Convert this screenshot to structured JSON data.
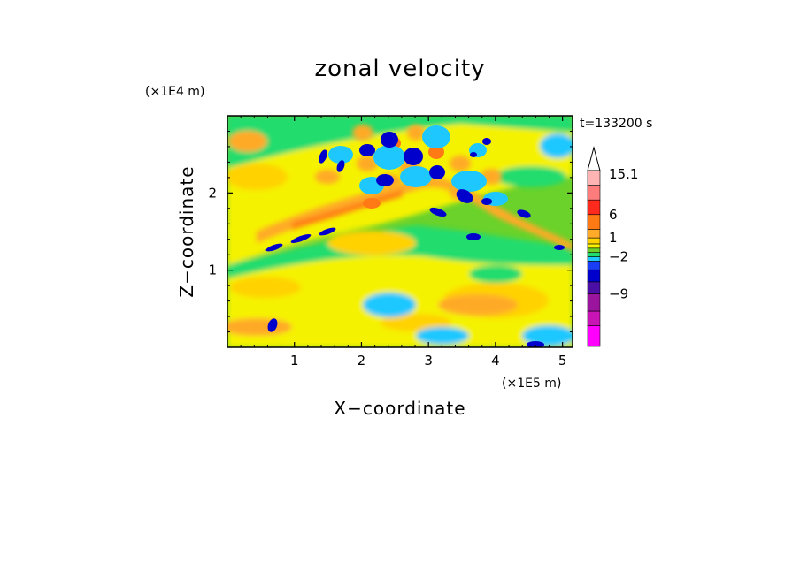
{
  "chart_data": {
    "type": "heatmap",
    "title": "zonal velocity",
    "xlabel": "X−coordinate",
    "ylabel": "Z−coordinate",
    "x_scale_label": "(×1E5 m)",
    "y_scale_label": "(×1E4 m)",
    "time_label": "t=133200 s",
    "xlim": [
      0,
      5.15
    ],
    "ylim": [
      0,
      3.0
    ],
    "x_ticks": [
      1,
      2,
      3,
      4,
      5
    ],
    "y_ticks": [
      1,
      2
    ],
    "colorbar": {
      "labeled_values": [
        {
          "value": 15.1,
          "label": "15.1"
        },
        {
          "value": 6,
          "label": "6"
        },
        {
          "value": 1,
          "label": "1"
        },
        {
          "value": -2,
          "label": "−2"
        },
        {
          "value": -9,
          "label": "−9"
        }
      ],
      "levels": [
        {
          "color": "#f0f",
          "value": -13
        },
        {
          "color": "#c814b4",
          "value": -11
        },
        {
          "color": "#9a149e",
          "value": -9
        },
        {
          "color": "#4b0fa6",
          "value": -7
        },
        {
          "color": "#0000cc",
          "value": -5
        },
        {
          "color": "#1a3ef5",
          "value": -3
        },
        {
          "color": "#1ec8ff",
          "value": -2
        },
        {
          "color": "#20dc6e",
          "value": -1
        },
        {
          "color": "#6ad22a",
          "value": 0
        },
        {
          "color": "#f5f200",
          "value": 0.5
        },
        {
          "color": "#ffd200",
          "value": 1
        },
        {
          "color": "#ffaa28",
          "value": 3
        },
        {
          "color": "#ff7a14",
          "value": 6
        },
        {
          "color": "#ff2a1e",
          "value": 9
        },
        {
          "color": "#ff7c7c",
          "value": 12
        },
        {
          "color": "#ffb4b4",
          "value": 15.1
        }
      ]
    }
  }
}
